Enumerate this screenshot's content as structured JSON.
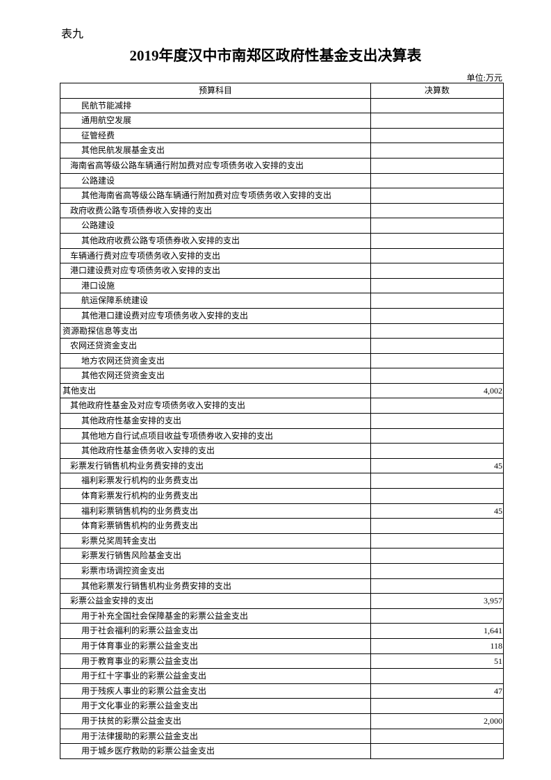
{
  "header": {
    "label": "表九",
    "title": "2019年度汉中市南郑区政府性基金支出决算表",
    "unit": "单位:万元"
  },
  "table": {
    "columns": [
      "预算科目",
      "决算数"
    ],
    "rows": [
      [
        "民航节能减排",
        null
      ],
      [
        "通用航空发展",
        null
      ],
      [
        "征管经费",
        null
      ],
      [
        "其他民航发展基金支出",
        null
      ],
      [
        "海南省高等级公路车辆通行附加费对应专项债务收入安排的支出",
        null
      ],
      [
        "公路建设",
        null
      ],
      [
        "其他海南省高等级公路车辆通行附加费对应专项债务收入安排的支出",
        null
      ],
      [
        "政府收费公路专项债券收入安排的支出",
        null
      ],
      [
        "公路建设",
        null
      ],
      [
        "其他政府收费公路专项债券收入安排的支出",
        null
      ],
      [
        "车辆通行费对应专项债务收入安排的支出",
        null
      ],
      [
        "港口建设费对应专项债务收入安排的支出",
        null
      ],
      [
        "港口设施",
        null
      ],
      [
        "航运保障系统建设",
        null
      ],
      [
        "其他港口建设费对应专项债务收入安排的支出",
        null
      ],
      [
        "资源勘探信息等支出",
        null
      ],
      [
        "农网还贷资金支出",
        null
      ],
      [
        "地方农网还贷资金支出",
        null
      ],
      [
        "其他农网还贷资金支出",
        null
      ],
      [
        "其他支出",
        "4,002"
      ],
      [
        "其他政府性基金及对应专项债务收入安排的支出",
        null
      ],
      [
        "其他政府性基金安排的支出",
        null
      ],
      [
        "其他地方自行试点项目收益专项债券收入安排的支出",
        null
      ],
      [
        "其他政府性基金债务收入安排的支出",
        null
      ],
      [
        "彩票发行销售机构业务费安排的支出",
        "45"
      ],
      [
        "福利彩票发行机构的业务费支出",
        null
      ],
      [
        "体育彩票发行机构的业务费支出",
        null
      ],
      [
        "福利彩票销售机构的业务费支出",
        "45"
      ],
      [
        "体育彩票销售机构的业务费支出",
        null
      ],
      [
        "彩票兑奖周转金支出",
        null
      ],
      [
        "彩票发行销售风险基金支出",
        null
      ],
      [
        "彩票市场调控资金支出",
        null
      ],
      [
        "其他彩票发行销售机构业务费安排的支出",
        null
      ],
      [
        "彩票公益金安排的支出",
        "3,957"
      ],
      [
        "用于补充全国社会保障基金的彩票公益金支出",
        null
      ],
      [
        "用于社会福利的彩票公益金支出",
        "1,641"
      ],
      [
        "用于体育事业的彩票公益金支出",
        "118"
      ],
      [
        "用于教育事业的彩票公益金支出",
        "51"
      ],
      [
        "用于红十字事业的彩票公益金支出",
        null
      ],
      [
        "用于残疾人事业的彩票公益金支出",
        "47"
      ],
      [
        "用于文化事业的彩票公益金支出",
        null
      ],
      [
        "用于扶贫的彩票公益金支出",
        "2,000"
      ],
      [
        "用于法律援助的彩票公益金支出",
        null
      ],
      [
        "用于城乡医疗救助的彩票公益金支出",
        null
      ]
    ]
  }
}
